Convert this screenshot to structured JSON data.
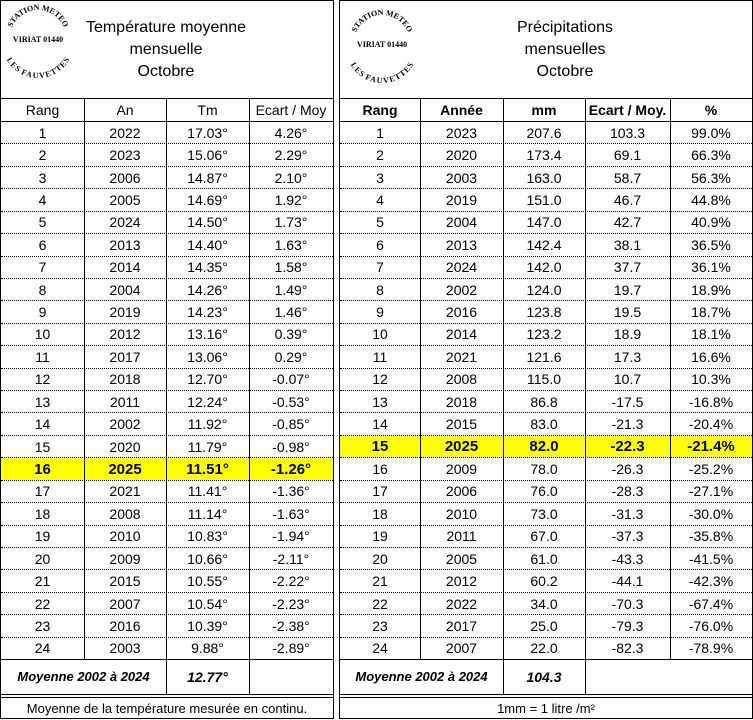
{
  "left": {
    "stamp": [
      "STATION METEO",
      "VIRIAT 01440",
      "LES FAUVETTES"
    ],
    "title": [
      "Température moyenne",
      "mensuelle",
      "Octobre"
    ],
    "columns": [
      "Rang",
      "An",
      "Tm",
      "Ecart / Moy"
    ],
    "rows": [
      [
        "1",
        "2022",
        "17.03°",
        "4.26°"
      ],
      [
        "2",
        "2023",
        "15.06°",
        "2.29°"
      ],
      [
        "3",
        "2006",
        "14.87°",
        "2.10°"
      ],
      [
        "4",
        "2005",
        "14.69°",
        "1.92°"
      ],
      [
        "5",
        "2024",
        "14.50°",
        "1.73°"
      ],
      [
        "6",
        "2013",
        "14.40°",
        "1.63°"
      ],
      [
        "7",
        "2014",
        "14.35°",
        "1.58°"
      ],
      [
        "8",
        "2004",
        "14.26°",
        "1.49°"
      ],
      [
        "9",
        "2019",
        "14.23°",
        "1.46°"
      ],
      [
        "10",
        "2012",
        "13.16°",
        "0.39°"
      ],
      [
        "11",
        "2017",
        "13.06°",
        "0.29°"
      ],
      [
        "12",
        "2018",
        "12.70°",
        "-0.07°"
      ],
      [
        "13",
        "2011",
        "12.24°",
        "-0.53°"
      ],
      [
        "14",
        "2002",
        "11.92°",
        "-0.85°"
      ],
      [
        "15",
        "2020",
        "11.79°",
        "-0.98°"
      ],
      [
        "16",
        "2025",
        "11.51°",
        "-1.26°"
      ],
      [
        "17",
        "2021",
        "11.41°",
        "-1.36°"
      ],
      [
        "18",
        "2008",
        "11.14°",
        "-1.63°"
      ],
      [
        "19",
        "2010",
        "10.83°",
        "-1.94°"
      ],
      [
        "20",
        "2009",
        "10.66°",
        "-2.11°"
      ],
      [
        "21",
        "2015",
        "10.55°",
        "-2.22°"
      ],
      [
        "22",
        "2007",
        "10.54°",
        "-2.23°"
      ],
      [
        "23",
        "2016",
        "10.39°",
        "-2.38°"
      ],
      [
        "24",
        "2003",
        "9.88°",
        "-2.89°"
      ]
    ],
    "highlight_row": 15,
    "footer": [
      "Moyenne 2002 à 2024",
      "12.77°"
    ],
    "note": "Moyenne de la température mesurée en continu."
  },
  "right": {
    "stamp": [
      "STATION METEO",
      "VIRIAT 01440",
      "LES FAUVETTES"
    ],
    "title": [
      "Précipitations",
      "mensuelles",
      "Octobre"
    ],
    "columns": [
      "Rang",
      "Année",
      "mm",
      "Ecart / Moy.",
      "%"
    ],
    "rows": [
      [
        "1",
        "2023",
        "207.6",
        "103.3",
        "99.0%"
      ],
      [
        "2",
        "2020",
        "173.4",
        "69.1",
        "66.3%"
      ],
      [
        "3",
        "2003",
        "163.0",
        "58.7",
        "56.3%"
      ],
      [
        "4",
        "2019",
        "151.0",
        "46.7",
        "44.8%"
      ],
      [
        "5",
        "2004",
        "147.0",
        "42.7",
        "40.9%"
      ],
      [
        "6",
        "2013",
        "142.4",
        "38.1",
        "36.5%"
      ],
      [
        "7",
        "2024",
        "142.0",
        "37.7",
        "36.1%"
      ],
      [
        "8",
        "2002",
        "124.0",
        "19.7",
        "18.9%"
      ],
      [
        "9",
        "2016",
        "123.8",
        "19.5",
        "18.7%"
      ],
      [
        "10",
        "2014",
        "123.2",
        "18.9",
        "18.1%"
      ],
      [
        "11",
        "2021",
        "121.6",
        "17.3",
        "16.6%"
      ],
      [
        "12",
        "2008",
        "115.0",
        "10.7",
        "10.3%"
      ],
      [
        "13",
        "2018",
        "86.8",
        "-17.5",
        "-16.8%"
      ],
      [
        "14",
        "2015",
        "83.0",
        "-21.3",
        "-20.4%"
      ],
      [
        "15",
        "2025",
        "82.0",
        "-22.3",
        "-21.4%"
      ],
      [
        "16",
        "2009",
        "78.0",
        "-26.3",
        "-25.2%"
      ],
      [
        "17",
        "2006",
        "76.0",
        "-28.3",
        "-27.1%"
      ],
      [
        "18",
        "2010",
        "73.0",
        "-31.3",
        "-30.0%"
      ],
      [
        "19",
        "2011",
        "67.0",
        "-37.3",
        "-35.8%"
      ],
      [
        "20",
        "2005",
        "61.0",
        "-43.3",
        "-41.5%"
      ],
      [
        "21",
        "2012",
        "60.2",
        "-44.1",
        "-42.3%"
      ],
      [
        "22",
        "2022",
        "34.0",
        "-70.3",
        "-67.4%"
      ],
      [
        "23",
        "2017",
        "25.0",
        "-79.3",
        "-76.0%"
      ],
      [
        "24",
        "2007",
        "22.0",
        "-82.3",
        "-78.9%"
      ]
    ],
    "highlight_row": 14,
    "footer": [
      "Moyenne 2002 à 2024",
      "104.3"
    ],
    "note": "1mm = 1 litre /m²"
  }
}
